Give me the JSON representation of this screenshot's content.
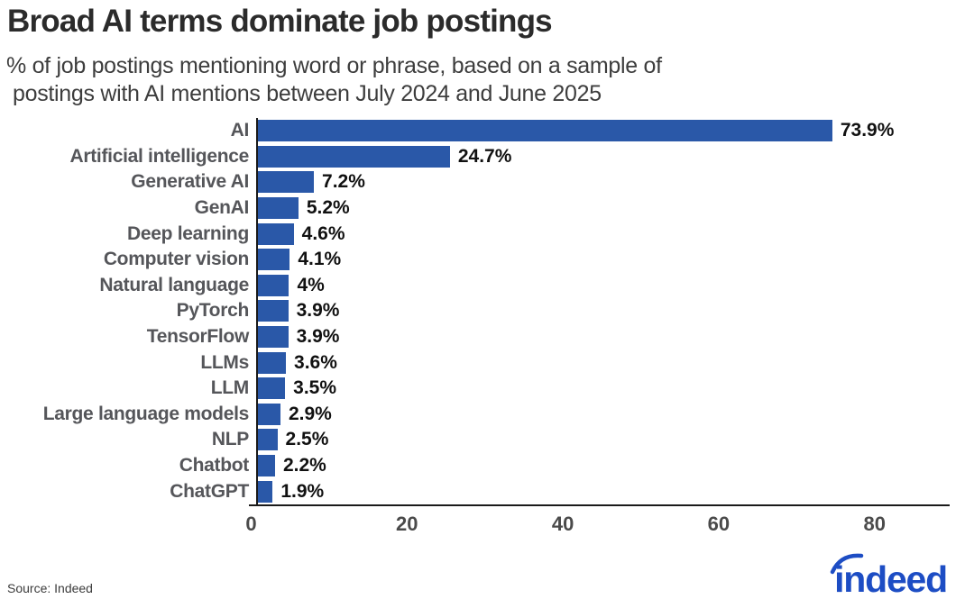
{
  "header": {
    "title": "Broad AI terms dominate job postings",
    "subtitle_line1": "% of job postings mentioning word or phrase, based on a sample of",
    "subtitle_line2": "postings with AI mentions between July 2024 and June 2025"
  },
  "chart_data": {
    "type": "bar",
    "orientation": "horizontal",
    "title": "Broad AI terms dominate job postings",
    "xlabel": "",
    "ylabel": "",
    "categories": [
      "AI",
      "Artificial intelligence",
      "Generative AI",
      "GenAI",
      "Deep learning",
      "Computer vision",
      "Natural language",
      "PyTorch",
      "TensorFlow",
      "LLMs",
      "LLM",
      "Large language models",
      "NLP",
      "Chatbot",
      "ChatGPT"
    ],
    "values": [
      73.9,
      24.7,
      7.2,
      5.2,
      4.6,
      4.1,
      4,
      3.9,
      3.9,
      3.6,
      3.5,
      2.9,
      2.5,
      2.2,
      1.9
    ],
    "value_labels": [
      "73.9%",
      "24.7%",
      "7.2%",
      "5.2%",
      "4.6%",
      "4.1%",
      "4%",
      "3.9%",
      "3.9%",
      "3.6%",
      "3.5%",
      "2.9%",
      "2.5%",
      "2.2%",
      "1.9%"
    ],
    "xlim": [
      0,
      89
    ],
    "xticks": [
      0,
      20,
      40,
      60,
      80
    ],
    "bar_color": "#2a58a8",
    "grid": false,
    "legend": false
  },
  "footer": {
    "source": "Source: Indeed",
    "logo_text": "indeed",
    "logo_color": "#1d4dc4"
  }
}
